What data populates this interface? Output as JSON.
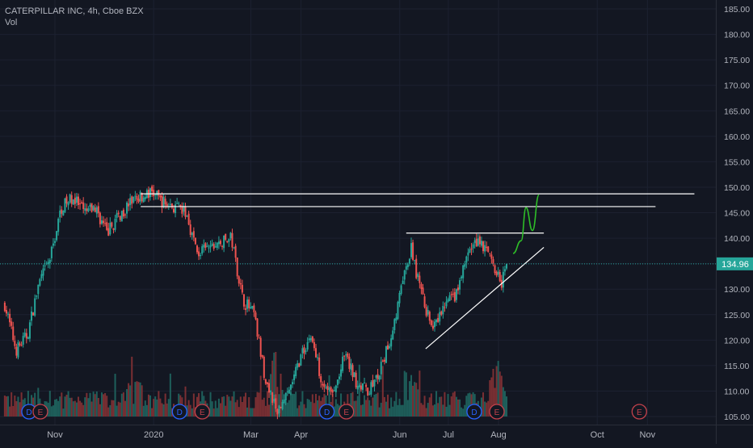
{
  "header": {
    "symbol_line": "CATERPILLAR INC, 4h, Cboe BZX",
    "indicator_label": "Vol"
  },
  "price_axis": {
    "ticks": [
      "185.00",
      "180.00",
      "175.00",
      "170.00",
      "165.00",
      "160.00",
      "155.00",
      "150.00",
      "145.00",
      "140.00",
      "135.00",
      "130.00",
      "125.00",
      "120.00",
      "115.00",
      "110.00",
      "105.00"
    ],
    "last_price_label": "134.96"
  },
  "time_axis": {
    "ticks": [
      "Nov",
      "2020",
      "Mar",
      "Apr",
      "Jun",
      "Jul",
      "Aug",
      "Oct",
      "Nov"
    ]
  },
  "event_markers": [
    {
      "label": "D",
      "kind": "dividend"
    },
    {
      "label": "E",
      "kind": "earnings"
    },
    {
      "label": "D",
      "kind": "dividend"
    },
    {
      "label": "E",
      "kind": "earnings"
    },
    {
      "label": "D",
      "kind": "dividend"
    },
    {
      "label": "E",
      "kind": "earnings"
    },
    {
      "label": "D",
      "kind": "dividend"
    },
    {
      "label": "E",
      "kind": "earnings"
    },
    {
      "label": "E",
      "kind": "earnings"
    }
  ],
  "colors": {
    "background": "#131722",
    "up": "#26a69a",
    "down": "#ef5350",
    "vol_up": "#1e5f5b",
    "vol_down": "#7a2f33",
    "drawing": "#ffffff",
    "projection": "#2ebd28",
    "last_price": "#26a69a",
    "dividend": "#2962ff",
    "earnings": "#c2414b",
    "axis_text": "#b2b5be"
  },
  "chart_data": {
    "type": "candlestick",
    "title": "CATERPILLAR INC, 4h, Cboe BZX",
    "ylim": [
      104,
      187
    ],
    "last_price": 134.96,
    "y_scale": "linear",
    "x_range": [
      "2019-10-01",
      "2020-11-30"
    ],
    "price_path": [
      [
        "2019-10-01",
        127
      ],
      [
        "2019-10-08",
        118
      ],
      [
        "2019-10-15",
        121
      ],
      [
        "2019-10-22",
        131
      ],
      [
        "2019-10-29",
        136
      ],
      [
        "2019-11-05",
        146
      ],
      [
        "2019-11-12",
        148
      ],
      [
        "2019-11-19",
        145
      ],
      [
        "2019-11-26",
        146
      ],
      [
        "2019-12-03",
        141
      ],
      [
        "2019-12-10",
        144
      ],
      [
        "2019-12-17",
        147
      ],
      [
        "2019-12-24",
        148
      ],
      [
        "2019-12-31",
        149
      ],
      [
        "2020-01-07",
        147
      ],
      [
        "2020-01-14",
        146
      ],
      [
        "2020-01-21",
        145
      ],
      [
        "2020-01-28",
        137
      ],
      [
        "2020-02-04",
        138
      ],
      [
        "2020-02-11",
        139
      ],
      [
        "2020-02-18",
        140
      ],
      [
        "2020-02-25",
        128
      ],
      [
        "2020-03-03",
        125
      ],
      [
        "2020-03-10",
        112
      ],
      [
        "2020-03-17",
        106
      ],
      [
        "2020-03-24",
        109
      ],
      [
        "2020-03-31",
        116
      ],
      [
        "2020-04-07",
        121
      ],
      [
        "2020-04-14",
        112
      ],
      [
        "2020-04-21",
        109
      ],
      [
        "2020-04-28",
        117
      ],
      [
        "2020-05-05",
        112
      ],
      [
        "2020-05-12",
        110
      ],
      [
        "2020-05-19",
        113
      ],
      [
        "2020-05-26",
        120
      ],
      [
        "2020-06-02",
        130
      ],
      [
        "2020-06-08",
        138
      ],
      [
        "2020-06-15",
        128
      ],
      [
        "2020-06-22",
        122
      ],
      [
        "2020-06-29",
        127
      ],
      [
        "2020-07-06",
        129
      ],
      [
        "2020-07-13",
        137
      ],
      [
        "2020-07-20",
        140
      ],
      [
        "2020-07-27",
        136
      ],
      [
        "2020-08-03",
        131
      ],
      [
        "2020-08-06",
        134.96
      ]
    ],
    "volume": {
      "unit": "relative",
      "typical": "low",
      "spikes_on": [
        "2019-12-20",
        "2020-03-16",
        "2020-06-08",
        "2020-07-31"
      ]
    },
    "drawings": {
      "horizontal_lines": [
        {
          "price": 148.7,
          "from": "2019-12-24",
          "to": "2020-11-30"
        },
        {
          "price": 146.2,
          "from": "2019-12-24",
          "to": "2020-11-06"
        },
        {
          "price": 141,
          "from": "2020-06-05",
          "to": "2020-08-29"
        }
      ],
      "trend_line": {
        "from": [
          "2020-06-17",
          118.3
        ],
        "to": [
          "2020-08-29",
          138.2
        ]
      },
      "projection_path": [
        [
          "2020-08-10",
          137
        ],
        [
          "2020-08-15",
          139.5
        ],
        [
          "2020-08-18",
          146
        ],
        [
          "2020-08-22",
          141.5
        ],
        [
          "2020-08-26",
          148.5
        ]
      ]
    },
    "time_ticks": [
      {
        "label": "Nov",
        "date": "2019-11-01"
      },
      {
        "label": "2020",
        "date": "2020-01-01"
      },
      {
        "label": "Mar",
        "date": "2020-03-01"
      },
      {
        "label": "Apr",
        "date": "2020-04-01"
      },
      {
        "label": "Jun",
        "date": "2020-06-01"
      },
      {
        "label": "Jul",
        "date": "2020-07-01"
      },
      {
        "label": "Aug",
        "date": "2020-08-01"
      },
      {
        "label": "Oct",
        "date": "2020-10-01"
      },
      {
        "label": "Nov",
        "date": "2020-11-01"
      }
    ],
    "event_dates": [
      "2019-10-16",
      "2019-10-23",
      "2020-01-17",
      "2020-01-31",
      "2020-04-17",
      "2020-04-29",
      "2020-07-17",
      "2020-07-31",
      "2020-10-27"
    ],
    "grid": true,
    "legend": "top-left"
  }
}
